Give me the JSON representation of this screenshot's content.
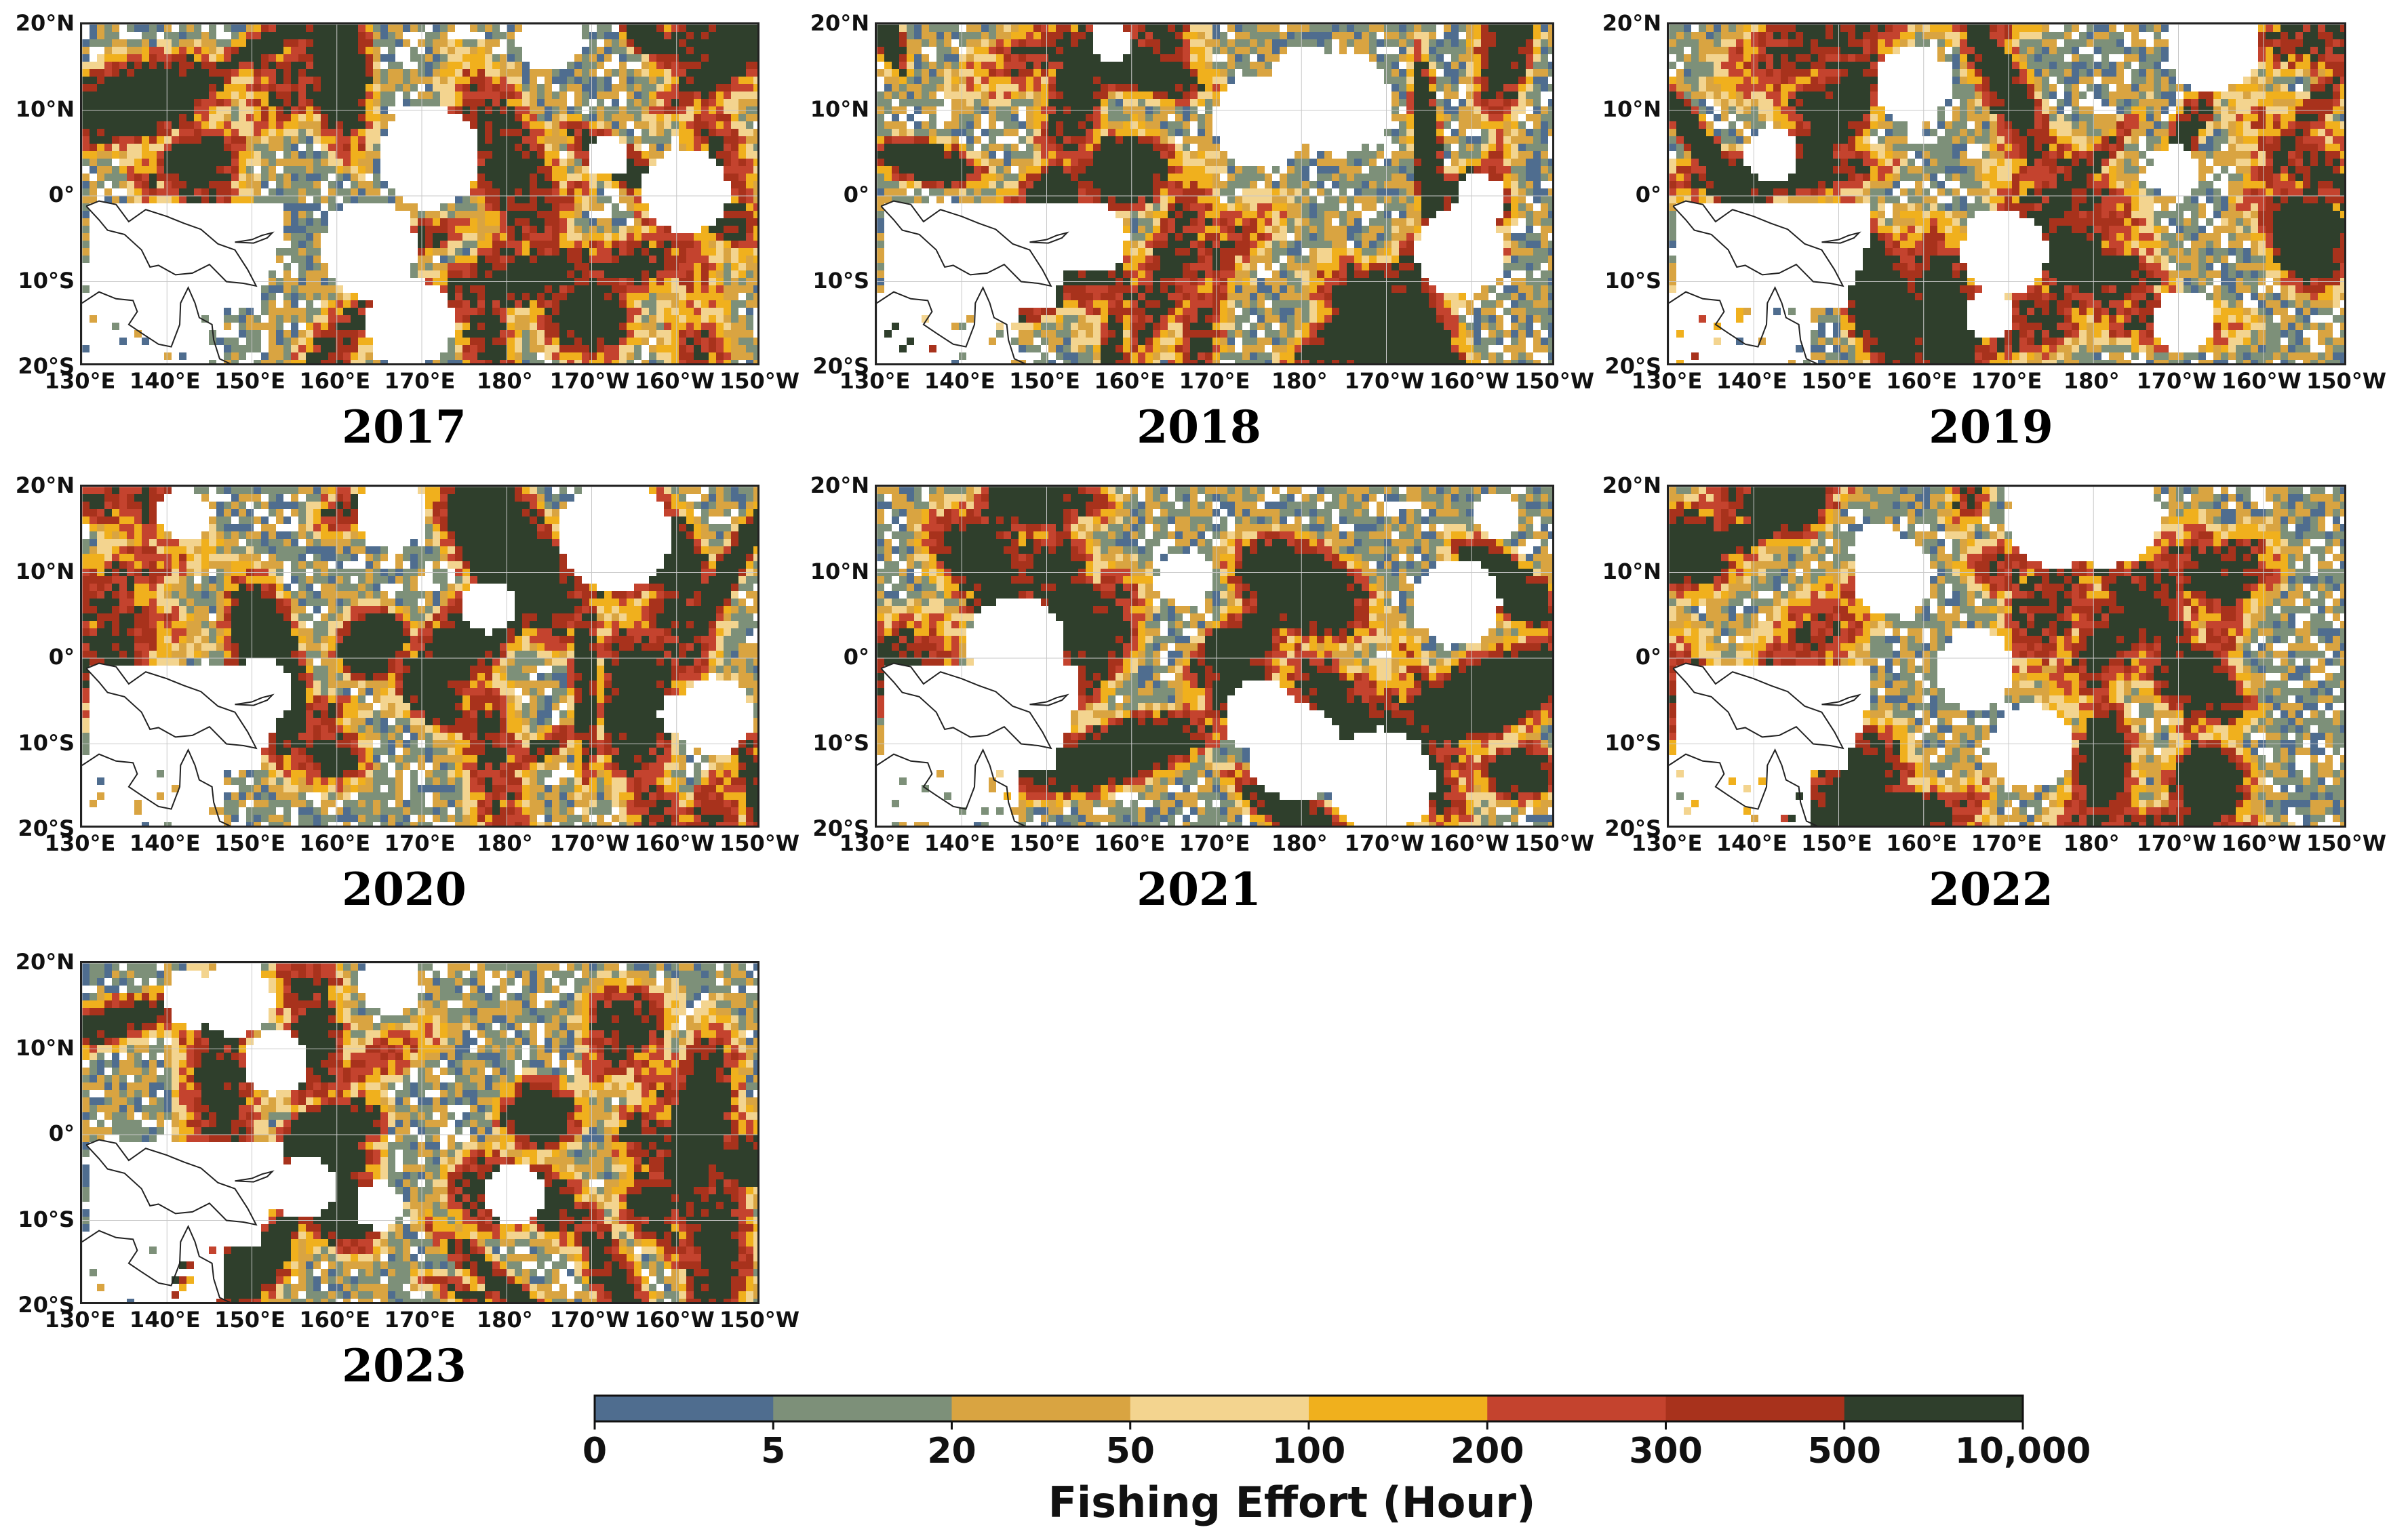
{
  "map_common": {
    "lat_ticks": [
      "20°N",
      "10°N",
      "0°",
      "10°S",
      "20°S"
    ],
    "lon_ticks": [
      "130°E",
      "140°E",
      "150°E",
      "160°E",
      "170°E",
      "180°",
      "170°W",
      "160°W",
      "150°W"
    ],
    "extent": {
      "lon_min": 130,
      "lon_max": 210,
      "lat_min": -20,
      "lat_max": 20
    }
  },
  "panels": [
    {
      "year": "2017",
      "seed": 17
    },
    {
      "year": "2018",
      "seed": 18
    },
    {
      "year": "2019",
      "seed": 19
    },
    {
      "year": "2020",
      "seed": 20
    },
    {
      "year": "2021",
      "seed": 21
    },
    {
      "year": "2022",
      "seed": 22
    },
    {
      "year": "2023",
      "seed": 23
    }
  ],
  "colorbar": {
    "title": "Fishing Effort (Hour)",
    "boundaries": [
      "0",
      "5",
      "20",
      "50",
      "100",
      "200",
      "300",
      "500",
      "10,000"
    ],
    "colors": [
      "#4f6d8f",
      "#7d9079",
      "#d9a441",
      "#f3d48f",
      "#f0b01d",
      "#c4432e",
      "#a8321c",
      "#2f3f2c"
    ]
  }
}
